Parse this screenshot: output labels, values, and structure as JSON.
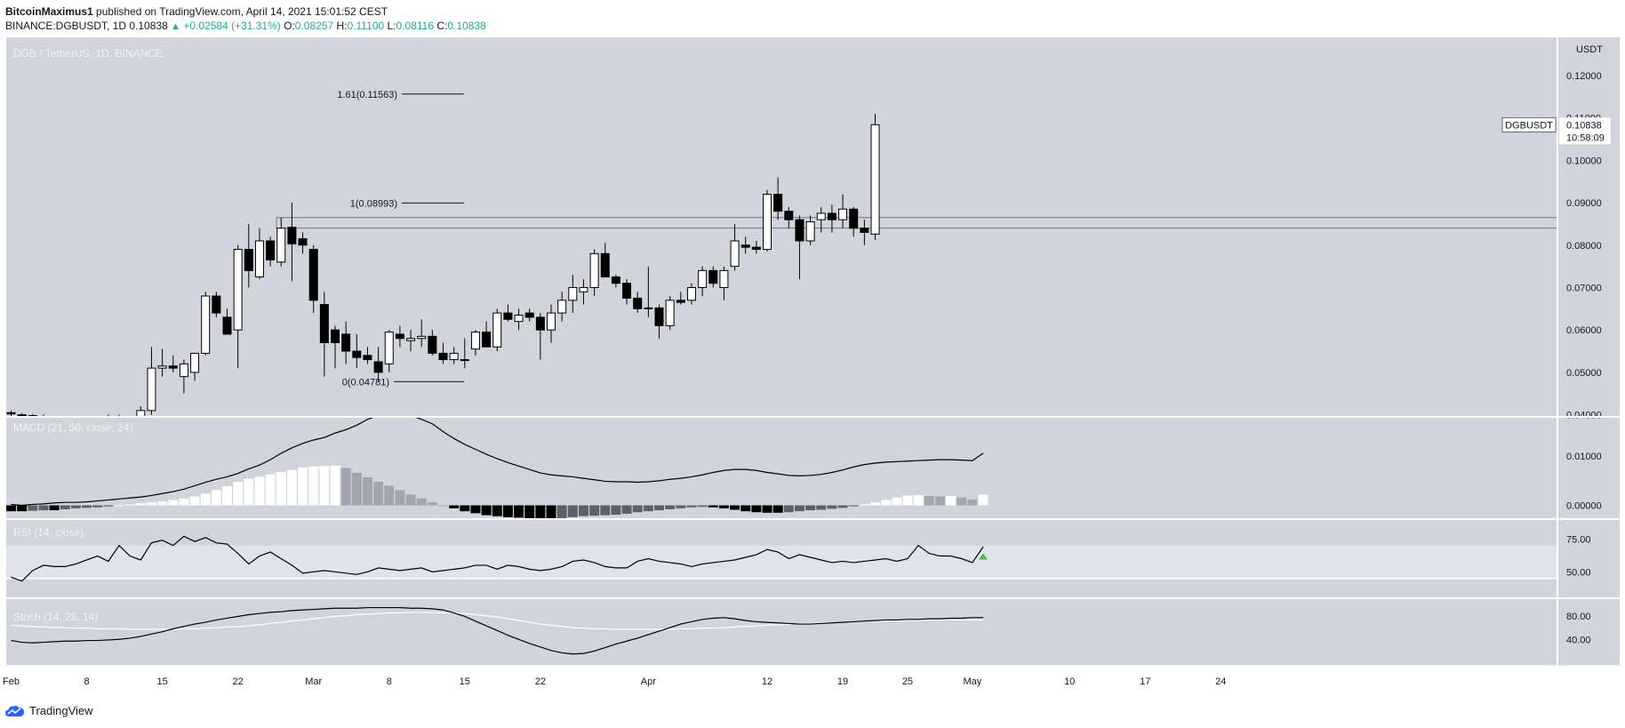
{
  "header": {
    "author": "BitcoinMaximus1",
    "published": "published on TradingView.com, April 14, 2021 15:01:52 CEST",
    "symbol_line": "BINANCE:DGBUSDT, 1D",
    "last": "0.10838",
    "change": "+0.02584 (+31.31%)",
    "o_label": "O:",
    "o": "0.08257",
    "h_label": "H:",
    "h": "0.11100",
    "l_label": "L:",
    "l": "0.08116",
    "c_label": "C:",
    "c": "0.10838"
  },
  "footer": {
    "brand": "TradingView"
  },
  "chart_data": [
    {
      "type": "candlestick",
      "title": "DGB / TetherUS, 1D, BINANCE",
      "currency_label": "USDT",
      "ylim": [
        0.0395,
        0.129
      ],
      "y_ticks": [
        0.04,
        0.05,
        0.06,
        0.07,
        0.08,
        0.09,
        0.1,
        0.11,
        0.12
      ],
      "y_tick_labels": [
        "0.04000",
        "0.05000",
        "0.06000",
        "0.07000",
        "0.08000",
        "0.09000",
        "0.10000",
        "0.11000",
        "0.12000"
      ],
      "x_tick_labels": [
        {
          "label": "Feb",
          "day": 0
        },
        {
          "label": "8",
          "day": 7
        },
        {
          "label": "15",
          "day": 14
        },
        {
          "label": "22",
          "day": 21
        },
        {
          "label": "Mar",
          "day": 28
        },
        {
          "label": "8",
          "day": 35
        },
        {
          "label": "15",
          "day": 42
        },
        {
          "label": "22",
          "day": 49
        },
        {
          "label": "Apr",
          "day": 59
        },
        {
          "label": "12",
          "day": 70
        },
        {
          "label": "19",
          "day": 77
        },
        {
          "label": "25",
          "day": 83
        },
        {
          "label": "May",
          "day": 89
        },
        {
          "label": "10",
          "day": 98
        },
        {
          "label": "17",
          "day": 105
        },
        {
          "label": "24",
          "day": 112
        }
      ],
      "candles": [
        [
          0.0405,
          0.041,
          0.0392,
          0.0402
        ],
        [
          0.04,
          0.0404,
          0.0385,
          0.039
        ],
        [
          0.0398,
          0.0402,
          0.038,
          0.0392
        ],
        [
          0.039,
          0.04,
          0.0378,
          0.0395
        ],
        [
          0.0385,
          0.039,
          0.036,
          0.037
        ],
        [
          0.037,
          0.039,
          0.036,
          0.0385
        ],
        [
          0.0385,
          0.0395,
          0.036,
          0.0375
        ],
        [
          0.037,
          0.038,
          0.034,
          0.0355
        ],
        [
          0.0355,
          0.0375,
          0.0345,
          0.036
        ],
        [
          0.036,
          0.04,
          0.035,
          0.0395
        ],
        [
          0.0395,
          0.04,
          0.037,
          0.0375
        ],
        [
          0.0375,
          0.0385,
          0.036,
          0.0365
        ],
        [
          0.0365,
          0.042,
          0.036,
          0.041
        ],
        [
          0.041,
          0.056,
          0.04,
          0.051
        ],
        [
          0.051,
          0.0555,
          0.049,
          0.0515
        ],
        [
          0.0515,
          0.054,
          0.05,
          0.051
        ],
        [
          0.049,
          0.053,
          0.045,
          0.052
        ],
        [
          0.05,
          0.054,
          0.048,
          0.0545
        ],
        [
          0.0545,
          0.069,
          0.054,
          0.068
        ],
        [
          0.068,
          0.069,
          0.063,
          0.064
        ],
        [
          0.063,
          0.065,
          0.059,
          0.059
        ],
        [
          0.06,
          0.08,
          0.051,
          0.079
        ],
        [
          0.079,
          0.085,
          0.07,
          0.074
        ],
        [
          0.0725,
          0.084,
          0.072,
          0.081
        ],
        [
          0.081,
          0.082,
          0.075,
          0.0765
        ],
        [
          0.076,
          0.0865,
          0.075,
          0.084
        ],
        [
          0.0842,
          0.09,
          0.0715,
          0.0803
        ],
        [
          0.0815,
          0.083,
          0.078,
          0.08
        ],
        [
          0.079,
          0.08,
          0.064,
          0.067
        ],
        [
          0.066,
          0.069,
          0.049,
          0.057
        ],
        [
          0.06,
          0.061,
          0.051,
          0.057
        ],
        [
          0.059,
          0.062,
          0.052,
          0.055
        ],
        [
          0.055,
          0.059,
          0.051,
          0.0535
        ],
        [
          0.054,
          0.056,
          0.052,
          0.053
        ],
        [
          0.0525,
          0.056,
          0.0478,
          0.05
        ],
        [
          0.052,
          0.06,
          0.05,
          0.0595
        ],
        [
          0.059,
          0.061,
          0.056,
          0.058
        ],
        [
          0.0575,
          0.06,
          0.055,
          0.058
        ],
        [
          0.058,
          0.0625,
          0.056,
          0.0585
        ],
        [
          0.0585,
          0.06,
          0.054,
          0.0545
        ],
        [
          0.0545,
          0.057,
          0.052,
          0.053
        ],
        [
          0.053,
          0.056,
          0.052,
          0.0545
        ],
        [
          0.053,
          0.058,
          0.051,
          0.053
        ],
        [
          0.0555,
          0.06,
          0.054,
          0.0595
        ],
        [
          0.0595,
          0.062,
          0.056,
          0.056
        ],
        [
          0.056,
          0.065,
          0.055,
          0.064
        ],
        [
          0.064,
          0.066,
          0.062,
          0.0625
        ],
        [
          0.062,
          0.065,
          0.06,
          0.0635
        ],
        [
          0.064,
          0.065,
          0.062,
          0.063
        ],
        [
          0.063,
          0.064,
          0.053,
          0.06
        ],
        [
          0.06,
          0.066,
          0.057,
          0.064
        ],
        [
          0.064,
          0.069,
          0.062,
          0.067
        ],
        [
          0.067,
          0.073,
          0.064,
          0.07
        ],
        [
          0.069,
          0.072,
          0.066,
          0.07
        ],
        [
          0.07,
          0.079,
          0.068,
          0.078
        ],
        [
          0.078,
          0.0805,
          0.073,
          0.0725
        ],
        [
          0.0725,
          0.073,
          0.07,
          0.071
        ],
        [
          0.071,
          0.072,
          0.066,
          0.0675
        ],
        [
          0.0675,
          0.069,
          0.064,
          0.065
        ],
        [
          0.065,
          0.075,
          0.063,
          0.0652
        ],
        [
          0.0652,
          0.066,
          0.058,
          0.061
        ],
        [
          0.061,
          0.068,
          0.06,
          0.067
        ],
        [
          0.067,
          0.069,
          0.066,
          0.0665
        ],
        [
          0.067,
          0.071,
          0.066,
          0.07
        ],
        [
          0.07,
          0.075,
          0.068,
          0.074
        ],
        [
          0.074,
          0.075,
          0.07,
          0.071
        ],
        [
          0.07,
          0.075,
          0.067,
          0.074
        ],
        [
          0.075,
          0.085,
          0.074,
          0.081
        ],
        [
          0.08,
          0.082,
          0.078,
          0.0795
        ],
        [
          0.0795,
          0.081,
          0.078,
          0.079
        ],
        [
          0.079,
          0.093,
          0.0785,
          0.092
        ],
        [
          0.092,
          0.096,
          0.086,
          0.088
        ],
        [
          0.088,
          0.089,
          0.084,
          0.086
        ],
        [
          0.086,
          0.087,
          0.072,
          0.081
        ],
        [
          0.081,
          0.087,
          0.08,
          0.0855
        ],
        [
          0.086,
          0.089,
          0.083,
          0.0875
        ],
        [
          0.0875,
          0.0895,
          0.083,
          0.086
        ],
        [
          0.086,
          0.092,
          0.084,
          0.0885
        ],
        [
          0.0885,
          0.089,
          0.082,
          0.084
        ],
        [
          0.084,
          0.086,
          0.08,
          0.083
        ],
        [
          0.0826,
          0.111,
          0.0812,
          0.1084
        ]
      ],
      "last_price_label": {
        "symbol": "DGBUSDT",
        "price": "0.10838",
        "countdown": "10:58:09"
      },
      "fib_levels": [
        {
          "label": "1.61(0.11563)",
          "value": 0.11563
        },
        {
          "label": "1(0.08993)",
          "value": 0.08993
        },
        {
          "label": "0(0.04781)",
          "value": 0.04781
        }
      ],
      "support_zone": [
        0.084,
        0.0865
      ]
    },
    {
      "type": "histogram+line",
      "title": "MACD (21, 50, close, 24)",
      "ylim": [
        -0.0028,
        0.018
      ],
      "y_ticks": [
        0.0,
        0.01
      ],
      "y_tick_labels": [
        "0.00000",
        "0.01000"
      ],
      "line": [
        0.0002,
        0.0,
        0.0002,
        0.0003,
        0.0005,
        0.0006,
        0.0006,
        0.0007,
        0.0009,
        0.0011,
        0.0013,
        0.0015,
        0.0017,
        0.002,
        0.0024,
        0.0028,
        0.0033,
        0.004,
        0.0047,
        0.0053,
        0.0058,
        0.0065,
        0.0074,
        0.0082,
        0.0093,
        0.0106,
        0.0117,
        0.0126,
        0.0133,
        0.0138,
        0.0147,
        0.0154,
        0.0163,
        0.0175,
        0.0183,
        0.0187,
        0.0188,
        0.0183,
        0.0175,
        0.0166,
        0.015,
        0.0136,
        0.0124,
        0.0114,
        0.0104,
        0.0095,
        0.0087,
        0.008,
        0.0073,
        0.0066,
        0.0062,
        0.006,
        0.0058,
        0.0055,
        0.0052,
        0.0049,
        0.0048,
        0.0048,
        0.0047,
        0.0048,
        0.005,
        0.0053,
        0.0055,
        0.0058,
        0.0062,
        0.0067,
        0.0071,
        0.0073,
        0.0073,
        0.0071,
        0.0067,
        0.0064,
        0.0061,
        0.006,
        0.0061,
        0.0063,
        0.0067,
        0.0072,
        0.0078,
        0.0083,
        0.0086,
        0.0088,
        0.0089,
        0.009,
        0.0091,
        0.0092,
        0.0093,
        0.0093,
        0.0092,
        0.0091,
        0.0106
      ],
      "hist": [
        -0.0012,
        -0.0012,
        -0.0011,
        -0.001,
        -0.001,
        -0.0008,
        -0.0006,
        -0.0005,
        -0.0004,
        -0.0002,
        0.0,
        0.0002,
        0.0004,
        0.0006,
        0.0008,
        0.0011,
        0.0014,
        0.0018,
        0.0024,
        0.0031,
        0.0039,
        0.0048,
        0.0054,
        0.0058,
        0.0063,
        0.0068,
        0.0072,
        0.0077,
        0.0079,
        0.008,
        0.0081,
        0.0076,
        0.0066,
        0.0057,
        0.0048,
        0.004,
        0.0031,
        0.0022,
        0.0014,
        0.0006,
        0.0,
        -0.0006,
        -0.0012,
        -0.0016,
        -0.002,
        -0.0022,
        -0.0024,
        -0.0025,
        -0.0026,
        -0.0027,
        -0.0028,
        -0.0026,
        -0.0024,
        -0.0022,
        -0.0021,
        -0.002,
        -0.0019,
        -0.0017,
        -0.0014,
        -0.0012,
        -0.001,
        -0.0008,
        -0.0006,
        -0.0004,
        -0.0003,
        -0.0004,
        -0.0006,
        -0.0009,
        -0.0012,
        -0.0014,
        -0.0015,
        -0.0015,
        -0.0014,
        -0.0012,
        -0.001,
        -0.0009,
        -0.0007,
        -0.0005,
        -0.0002,
        0.0002,
        0.0006,
        0.0011,
        0.0016,
        0.002,
        0.0021,
        0.0019,
        0.0018,
        0.0019,
        0.0016,
        0.0012,
        0.0022
      ]
    },
    {
      "type": "line",
      "title": "RSI (14, close)",
      "ylim": [
        30,
        90
      ],
      "y_ticks": [
        50,
        75
      ],
      "y_tick_labels": [
        "50.00",
        "75.00"
      ],
      "band": [
        45,
        70
      ],
      "values": [
        46,
        43,
        51,
        55,
        54,
        54,
        56,
        59,
        62,
        58,
        70,
        62,
        59,
        72,
        74,
        70,
        77,
        73,
        76,
        72,
        71,
        64,
        56,
        62,
        65,
        60,
        55,
        49,
        50,
        51,
        50,
        49,
        48,
        50,
        53,
        52,
        51,
        52,
        53,
        50,
        51,
        52,
        53,
        55,
        55,
        52,
        55,
        54,
        52,
        51,
        52,
        54,
        58,
        59,
        57,
        54,
        53,
        53,
        58,
        60,
        58,
        57,
        56,
        54,
        56,
        57,
        58,
        59,
        61,
        63,
        67,
        65,
        60,
        63,
        61,
        59,
        57,
        58,
        57,
        58,
        59,
        60,
        58,
        60,
        70,
        64,
        62,
        62,
        60,
        57,
        69
      ],
      "signal_marker": {
        "x": 90,
        "value": 62,
        "color": "#3ec53e"
      }
    },
    {
      "type": "line",
      "title": "Stoch (14, 28, 14)",
      "ylim": [
        -5,
        110
      ],
      "y_ticks": [
        40,
        80
      ],
      "y_tick_labels": [
        "40.00",
        "80.00"
      ],
      "k": [
        38,
        35,
        34,
        35,
        36,
        37,
        37,
        38,
        38,
        39,
        40,
        42,
        45,
        49,
        53,
        58,
        62,
        66,
        69,
        73,
        76,
        79,
        82,
        84,
        86,
        87,
        89,
        90,
        91,
        92,
        93,
        93,
        93,
        94,
        94,
        94,
        94,
        93,
        93,
        92,
        90,
        85,
        79,
        71,
        63,
        55,
        47,
        40,
        33,
        27,
        21,
        17,
        15,
        16,
        20,
        26,
        32,
        37,
        42,
        48,
        54,
        60,
        66,
        70,
        74,
        76,
        77,
        75,
        72,
        70,
        69,
        68,
        67,
        66,
        66,
        67,
        68,
        69,
        70,
        71,
        72,
        73,
        73,
        74,
        74,
        75,
        75,
        76,
        76,
        77,
        77
      ],
      "d": [
        64,
        63,
        62,
        61,
        60,
        60,
        59,
        59,
        58,
        58,
        58,
        57,
        57,
        57,
        57,
        57,
        58,
        58,
        59,
        60,
        61,
        62,
        63,
        65,
        67,
        69,
        71,
        73,
        75,
        77,
        79,
        80,
        82,
        83,
        84,
        85,
        85,
        86,
        86,
        86,
        85,
        85,
        84,
        82,
        80,
        78,
        75,
        72,
        69,
        66,
        64,
        62,
        60,
        59,
        58,
        58,
        57,
        57,
        57,
        57,
        57,
        57,
        58,
        58,
        59,
        59,
        60,
        61,
        62,
        63,
        64,
        65,
        66,
        67,
        67,
        68,
        68,
        69,
        70,
        70,
        71,
        71,
        72,
        72,
        72,
        73,
        73,
        73,
        73,
        73,
        73
      ]
    }
  ]
}
